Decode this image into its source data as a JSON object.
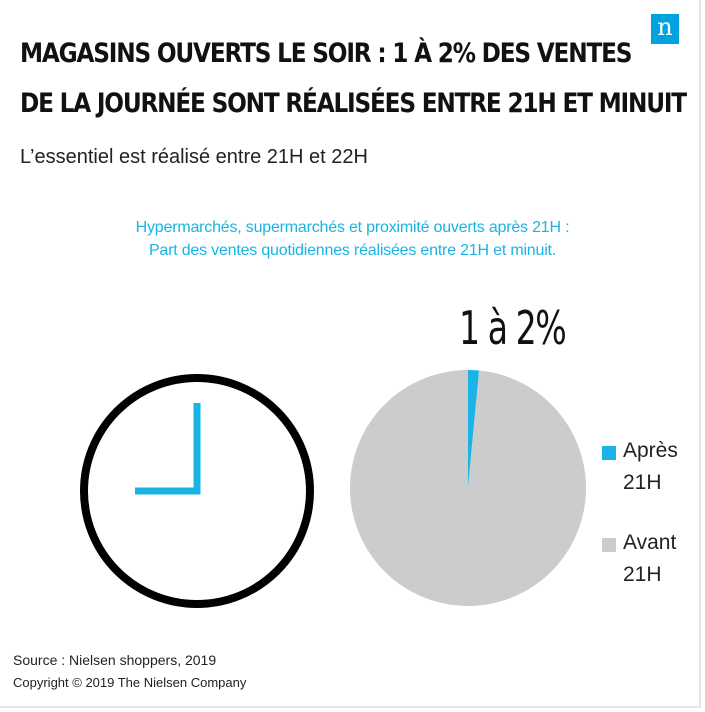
{
  "header": {
    "logo_letter": "n",
    "title_line1": "MAGASINS OUVERTS LE SOIR : 1 À 2% DES VENTES",
    "title_line2": "DE LA JOURNÉE SONT RÉALISÉES ENTRE 21H ET MINUIT",
    "subtitle": "L’essentiel est réalisé entre 21H et 22H"
  },
  "caption": {
    "line1": "Hypermarchés, supermarchés et proximité ouverts après 21H :",
    "line2": "Part des ventes quotidiennes réalisées entre 21H et minuit."
  },
  "colors": {
    "accent": "#19b4e5",
    "pie_rest": "#cccccc",
    "clock": "#000000",
    "logo": "#00a3e0"
  },
  "chart_data": {
    "type": "pie",
    "title": "Part des ventes quotidiennes réalisées entre 21H et minuit.",
    "slices": [
      {
        "label": "Après 21H",
        "value": 1.5,
        "color": "#19b4e5"
      },
      {
        "label": "Avant 21H",
        "value": 98.5,
        "color": "#cccccc"
      }
    ],
    "annotation": "1 à 2%",
    "legend": [
      {
        "label_line1": "Après",
        "label_line2": "21H",
        "color": "#19b4e5"
      },
      {
        "label_line1": "Avant",
        "label_line2": "21H",
        "color": "#cccccc"
      }
    ],
    "legend_position": "right"
  },
  "clock": {
    "hours": 9,
    "minutes": 0,
    "icon": "clock-icon"
  },
  "footer": {
    "source": "Source : Nielsen shoppers, 2019",
    "copyright": "Copyright © 2019 The Nielsen Company"
  }
}
